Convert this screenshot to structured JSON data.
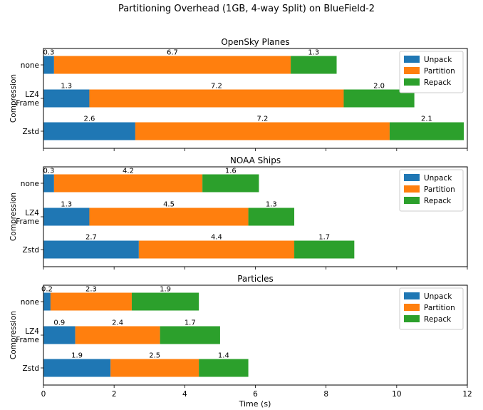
{
  "suptitle": "Partitioning Overhead (1GB, 4-way Split) on BlueField-2",
  "xlabel": "Time (s)",
  "colors": {
    "Unpack": "#1f77b4",
    "Partition": "#ff7f0e",
    "Repack": "#2ca02c"
  },
  "chart_data": [
    {
      "type": "bar",
      "orientation": "horizontal-stacked",
      "title": "OpenSky Planes",
      "ylabel": "Compression",
      "categories": [
        "none",
        "LZ4\nFrame",
        "Zstd"
      ],
      "series": [
        {
          "name": "Unpack",
          "values": [
            0.3,
            1.3,
            2.6
          ]
        },
        {
          "name": "Partition",
          "values": [
            6.7,
            7.2,
            7.2
          ]
        },
        {
          "name": "Repack",
          "values": [
            1.3,
            2.0,
            2.1
          ]
        }
      ],
      "xlim": [
        0,
        12
      ],
      "legend": "top-right"
    },
    {
      "type": "bar",
      "orientation": "horizontal-stacked",
      "title": "NOAA Ships",
      "ylabel": "Compression",
      "categories": [
        "none",
        "LZ4\nFrame",
        "Zstd"
      ],
      "series": [
        {
          "name": "Unpack",
          "values": [
            0.3,
            1.3,
            2.7
          ]
        },
        {
          "name": "Partition",
          "values": [
            4.2,
            4.5,
            4.4
          ]
        },
        {
          "name": "Repack",
          "values": [
            1.6,
            1.3,
            1.7
          ]
        }
      ],
      "xlim": [
        0,
        12
      ],
      "legend": "top-right"
    },
    {
      "type": "bar",
      "orientation": "horizontal-stacked",
      "title": "Particles",
      "ylabel": "Compression",
      "categories": [
        "none",
        "LZ4\nFrame",
        "Zstd"
      ],
      "series": [
        {
          "name": "Unpack",
          "values": [
            0.2,
            0.9,
            1.9
          ]
        },
        {
          "name": "Partition",
          "values": [
            2.3,
            2.4,
            2.5
          ]
        },
        {
          "name": "Repack",
          "values": [
            1.9,
            1.7,
            1.4
          ]
        }
      ],
      "xlim": [
        0,
        12
      ],
      "xticks": [
        0,
        2,
        4,
        6,
        8,
        10,
        12
      ],
      "legend": "top-right"
    }
  ]
}
